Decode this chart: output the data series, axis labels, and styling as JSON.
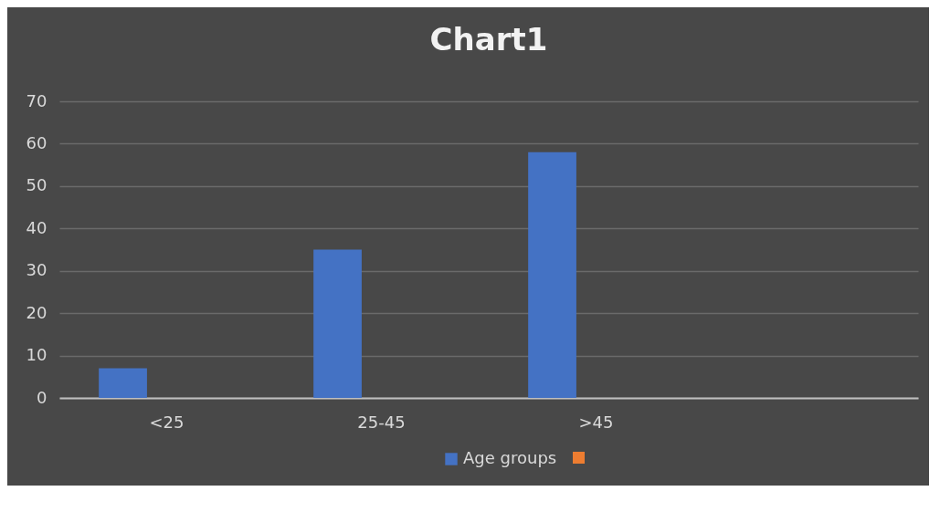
{
  "chart_data": {
    "type": "bar",
    "title": "Chart1",
    "categories": [
      "<25",
      "25-45",
      ">45",
      null
    ],
    "series": [
      {
        "name": "Age groups",
        "color": "#4472c4",
        "values": [
          7,
          35,
          58,
          null
        ]
      }
    ],
    "ylim": [
      0,
      70
    ],
    "yticks": [
      0,
      10,
      20,
      30,
      40,
      50,
      60,
      70
    ],
    "grid": "y",
    "legend": "bottom"
  }
}
